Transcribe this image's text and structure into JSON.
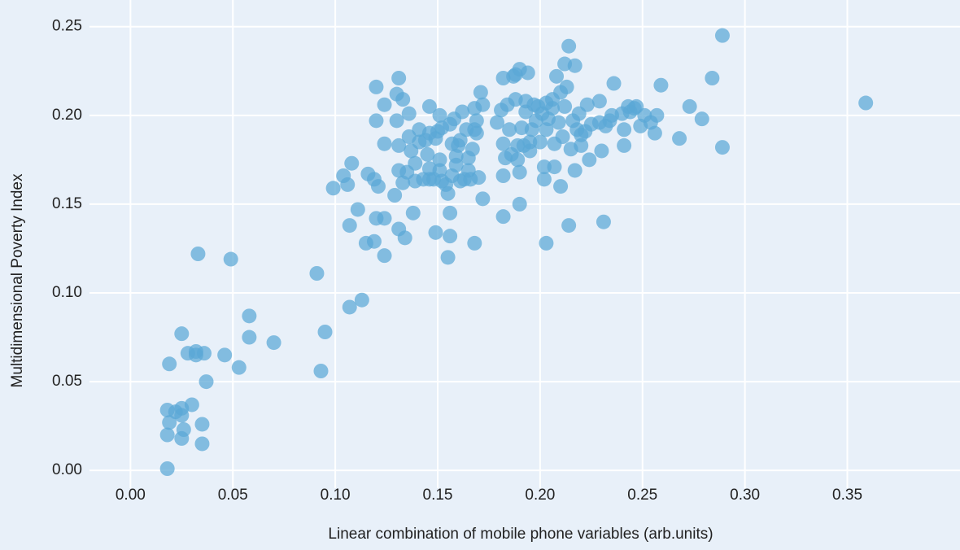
{
  "chart_data": {
    "type": "scatter",
    "x_label": "Linear combination of mobile phone variables (arb.units)",
    "y_label": "Multidimensional Poverty Index",
    "color": "#5aa7d6",
    "grid": true,
    "xlim": [
      -0.02,
      0.405
    ],
    "ylim": [
      -0.01,
      0.265
    ],
    "xticks": [
      {
        "value": 0,
        "label": "0.00"
      },
      {
        "value": 0.05,
        "label": "0.05"
      },
      {
        "value": 0.1,
        "label": "0.10"
      },
      {
        "value": 0.15,
        "label": "0.15"
      },
      {
        "value": 0.2,
        "label": "0.20"
      },
      {
        "value": 0.25,
        "label": "0.25"
      },
      {
        "value": 0.3,
        "label": "0.30"
      },
      {
        "value": 0.35,
        "label": "0.35"
      }
    ],
    "yticks": [
      {
        "value": 0,
        "label": "0.00"
      },
      {
        "value": 0.05,
        "label": "0.05"
      },
      {
        "value": 0.1,
        "label": "0.10"
      },
      {
        "value": 0.15,
        "label": "0.15"
      },
      {
        "value": 0.2,
        "label": "0.20"
      },
      {
        "value": 0.25,
        "label": "0.25"
      }
    ],
    "x": [
      0.018,
      0.018,
      0.018,
      0.019,
      0.022,
      0.025,
      0.025,
      0.025,
      0.026,
      0.03,
      0.035,
      0.035,
      0.019,
      0.025,
      0.028,
      0.032,
      0.032,
      0.036,
      0.037,
      0.033,
      0.046,
      0.049,
      0.053,
      0.058,
      0.058,
      0.07,
      0.091,
      0.093,
      0.095,
      0.107,
      0.113,
      0.099,
      0.104,
      0.106,
      0.108,
      0.107,
      0.111,
      0.115,
      0.116,
      0.119,
      0.12,
      0.119,
      0.12,
      0.12,
      0.121,
      0.124,
      0.124,
      0.124,
      0.124,
      0.129,
      0.13,
      0.13,
      0.131,
      0.131,
      0.131,
      0.131,
      0.133,
      0.133,
      0.134,
      0.135,
      0.136,
      0.136,
      0.137,
      0.138,
      0.139,
      0.139,
      0.141,
      0.141,
      0.143,
      0.144,
      0.145,
      0.146,
      0.146,
      0.146,
      0.146,
      0.148,
      0.149,
      0.149,
      0.15,
      0.151,
      0.151,
      0.151,
      0.152,
      0.152,
      0.154,
      0.155,
      0.155,
      0.156,
      0.156,
      0.156,
      0.157,
      0.157,
      0.158,
      0.159,
      0.159,
      0.16,
      0.161,
      0.161,
      0.162,
      0.163,
      0.164,
      0.165,
      0.165,
      0.166,
      0.167,
      0.168,
      0.168,
      0.168,
      0.169,
      0.169,
      0.17,
      0.171,
      0.172,
      0.172,
      0.179,
      0.181,
      0.182,
      0.182,
      0.182,
      0.182,
      0.183,
      0.184,
      0.185,
      0.186,
      0.187,
      0.188,
      0.188,
      0.189,
      0.189,
      0.19,
      0.19,
      0.19,
      0.191,
      0.192,
      0.193,
      0.193,
      0.194,
      0.195,
      0.195,
      0.196,
      0.197,
      0.198,
      0.199,
      0.2,
      0.201,
      0.202,
      0.202,
      0.203,
      0.203,
      0.203,
      0.204,
      0.206,
      0.206,
      0.207,
      0.207,
      0.208,
      0.209,
      0.21,
      0.21,
      0.211,
      0.212,
      0.212,
      0.213,
      0.214,
      0.214,
      0.215,
      0.216,
      0.217,
      0.217,
      0.218,
      0.219,
      0.22,
      0.22,
      0.222,
      0.223,
      0.224,
      0.225,
      0.229,
      0.229,
      0.23,
      0.231,
      0.232,
      0.234,
      0.235,
      0.236,
      0.24,
      0.241,
      0.241,
      0.243,
      0.244,
      0.246,
      0.247,
      0.249,
      0.251,
      0.254,
      0.256,
      0.257,
      0.259,
      0.268,
      0.273,
      0.279,
      0.284,
      0.289,
      0.289,
      0.359
    ],
    "values": [
      0.001,
      0.02,
      0.034,
      0.027,
      0.033,
      0.035,
      0.031,
      0.018,
      0.023,
      0.037,
      0.026,
      0.015,
      0.06,
      0.077,
      0.066,
      0.067,
      0.065,
      0.066,
      0.05,
      0.122,
      0.065,
      0.119,
      0.058,
      0.087,
      0.075,
      0.072,
      0.111,
      0.056,
      0.078,
      0.092,
      0.096,
      0.159,
      0.166,
      0.161,
      0.173,
      0.138,
      0.147,
      0.128,
      0.167,
      0.164,
      0.142,
      0.129,
      0.197,
      0.216,
      0.16,
      0.206,
      0.184,
      0.142,
      0.121,
      0.155,
      0.212,
      0.197,
      0.221,
      0.183,
      0.169,
      0.136,
      0.209,
      0.162,
      0.131,
      0.168,
      0.201,
      0.188,
      0.18,
      0.145,
      0.173,
      0.163,
      0.192,
      0.185,
      0.164,
      0.186,
      0.178,
      0.205,
      0.19,
      0.17,
      0.164,
      0.164,
      0.134,
      0.187,
      0.191,
      0.2,
      0.175,
      0.169,
      0.193,
      0.163,
      0.161,
      0.156,
      0.12,
      0.195,
      0.145,
      0.132,
      0.166,
      0.184,
      0.198,
      0.172,
      0.177,
      0.183,
      0.186,
      0.163,
      0.202,
      0.164,
      0.192,
      0.176,
      0.169,
      0.164,
      0.181,
      0.204,
      0.192,
      0.128,
      0.19,
      0.197,
      0.165,
      0.213,
      0.206,
      0.153,
      0.196,
      0.203,
      0.221,
      0.184,
      0.166,
      0.143,
      0.176,
      0.206,
      0.192,
      0.178,
      0.222,
      0.209,
      0.223,
      0.183,
      0.175,
      0.168,
      0.15,
      0.226,
      0.193,
      0.183,
      0.208,
      0.202,
      0.224,
      0.185,
      0.18,
      0.192,
      0.206,
      0.197,
      0.205,
      0.185,
      0.201,
      0.171,
      0.164,
      0.207,
      0.192,
      0.128,
      0.198,
      0.204,
      0.209,
      0.184,
      0.171,
      0.222,
      0.196,
      0.213,
      0.16,
      0.188,
      0.229,
      0.205,
      0.216,
      0.239,
      0.138,
      0.181,
      0.197,
      0.228,
      0.169,
      0.192,
      0.201,
      0.189,
      0.183,
      0.191,
      0.206,
      0.175,
      0.195,
      0.196,
      0.208,
      0.18,
      0.14,
      0.194,
      0.197,
      0.2,
      0.218,
      0.201,
      0.192,
      0.183,
      0.205,
      0.202,
      0.204,
      0.205,
      0.194,
      0.2,
      0.196,
      0.19,
      0.2,
      0.217,
      0.187,
      0.205,
      0.198,
      0.221,
      0.245,
      0.182,
      0.207
    ]
  }
}
